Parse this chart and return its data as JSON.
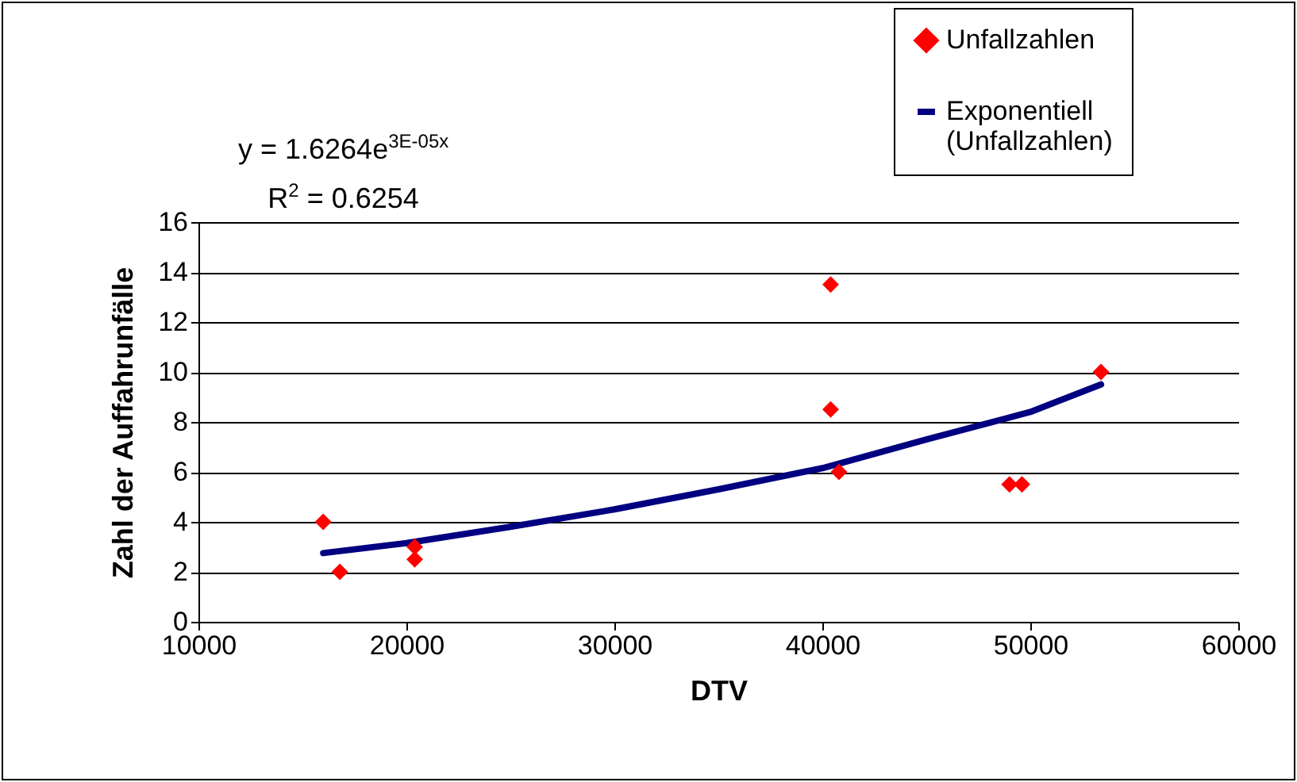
{
  "chart_data": {
    "type": "scatter",
    "xlabel": "DTV",
    "ylabel": "Zahl der Auffahrunfälle",
    "annotations": [
      "y = 1.6264e$^{3E-05x}$",
      "R$^{2}$ = 0.6254"
    ],
    "xlim": [
      10000,
      60000
    ],
    "xticks": [
      10000,
      20000,
      30000,
      40000,
      50000,
      60000
    ],
    "ylim": [
      0,
      16
    ],
    "yticks": [
      0,
      2,
      4,
      6,
      8,
      10,
      12,
      14,
      16
    ],
    "grid": "y",
    "legend": "top right",
    "series": [
      {
        "name": "Unfallzahlen",
        "type": "scatter",
        "marker": "diamond",
        "color": "#ff0000",
        "x": [
          16000,
          16800,
          20400,
          20400,
          40400,
          40400,
          40800,
          49000,
          49600,
          53400
        ],
        "values": [
          4,
          2,
          3,
          2.5,
          13.5,
          8.5,
          6,
          5.5,
          5.5,
          10
        ]
      },
      {
        "name": "Exponentiell (Unfallzahlen)",
        "type": "line",
        "marker": "none",
        "line_style": "solid",
        "color": "#000080",
        "x": [
          16000,
          20000,
          25000,
          30000,
          35000,
          40000,
          45000,
          50000,
          53400
        ],
        "values": [
          2.75,
          3.15,
          3.8,
          4.5,
          5.3,
          6.15,
          7.3,
          8.4,
          9.5
        ]
      }
    ]
  }
}
